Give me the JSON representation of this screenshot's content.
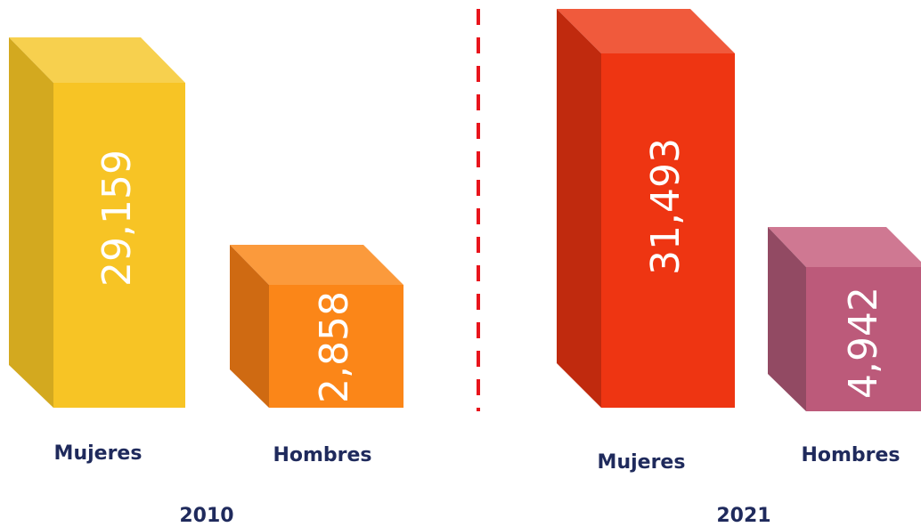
{
  "panels": [
    {
      "year": "2010",
      "items": [
        {
          "label": "Mujeres",
          "value": "29,159"
        },
        {
          "label": "Hombres",
          "value": "2,858"
        }
      ]
    },
    {
      "year": "2021",
      "items": [
        {
          "label": "Mujeres",
          "value": "31,493"
        },
        {
          "label": "Hombres",
          "value": "4,942"
        }
      ]
    }
  ]
}
